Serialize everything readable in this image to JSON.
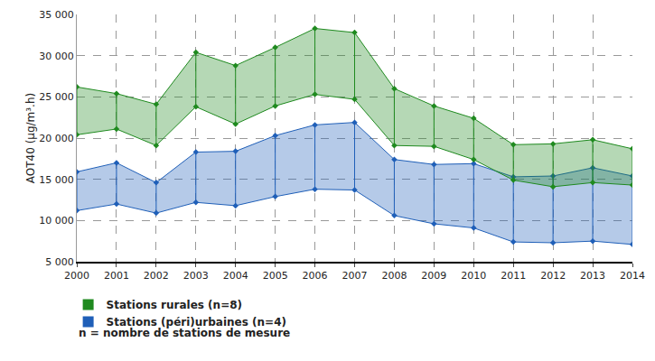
{
  "chart_data": {
    "type": "range",
    "y_label": "AOT40 (µg/m³.h)",
    "x": [
      2000,
      2001,
      2002,
      2003,
      2004,
      2005,
      2006,
      2007,
      2008,
      2009,
      2010,
      2011,
      2012,
      2013,
      2014
    ],
    "series": [
      {
        "name": "Stations (péri)urbaines (n=4)",
        "color": "#1f5fb8",
        "values": [
          15900,
          17000,
          14600,
          18300,
          18400,
          20300,
          21600,
          21900,
          17400,
          16800,
          16900,
          15300,
          15400,
          16400,
          15400
        ],
        "lower": [
          11200,
          12000,
          10900,
          12200,
          11800,
          12900,
          13800,
          13700,
          10600,
          9600,
          9100,
          7400,
          7300,
          7500,
          7100
        ]
      },
      {
        "name": "Stations rurales (n=8)",
        "color": "#1f8a1f",
        "values": [
          26200,
          25400,
          24100,
          30400,
          28800,
          31000,
          33300,
          32800,
          26000,
          23900,
          22400,
          19200,
          19300,
          19800,
          18700
        ],
        "lower": [
          20400,
          21100,
          19100,
          23800,
          21700,
          23900,
          25300,
          24700,
          19100,
          19000,
          17400,
          14900,
          14100,
          14600,
          14300
        ]
      }
    ],
    "annotations": [
      "n = nombre de stations de mesure"
    ],
    "xlim": [
      2000,
      2014
    ],
    "xticks": [
      2000,
      2001,
      2002,
      2003,
      2004,
      2005,
      2006,
      2007,
      2008,
      2009,
      2010,
      2011,
      2012,
      2013,
      2014
    ],
    "ylim": [
      5000,
      35000
    ],
    "yticks": [
      {
        "value": 5000,
        "label": "5 000"
      },
      {
        "value": 10000,
        "label": "10 000"
      },
      {
        "value": 15000,
        "label": "15 000"
      },
      {
        "value": 20000,
        "label": "20 000"
      },
      {
        "value": 25000,
        "label": "25 000"
      },
      {
        "value": 30000,
        "label": "30 000"
      },
      {
        "value": 35000,
        "label": "35 000"
      }
    ],
    "grid": true,
    "legend": "bottom left"
  }
}
